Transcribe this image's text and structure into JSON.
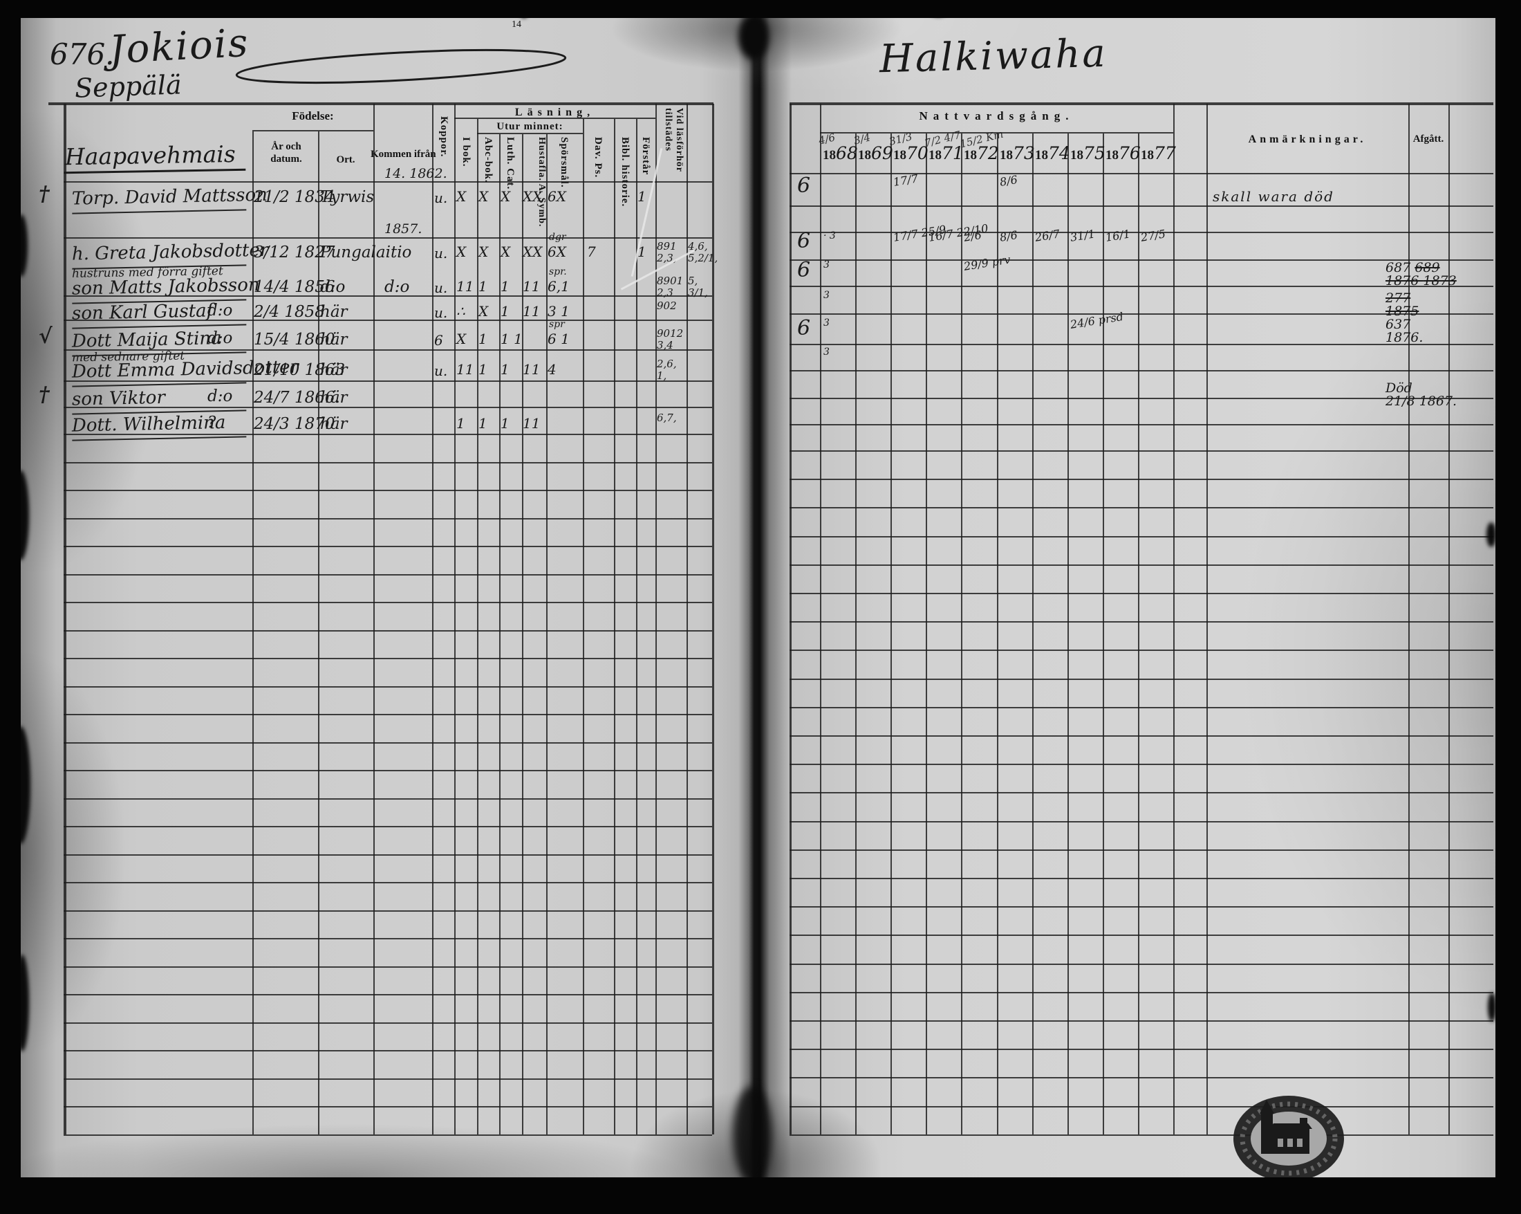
{
  "page": {
    "number": "676.",
    "title_left": "Jokiois",
    "village": "Seppälä",
    "farm": "Haapavehmais",
    "title_right": "Halkiwaha",
    "page_mark": "14",
    "left_table": {
      "fodelse": "Födelse:",
      "ar_och_datum": "År och datum.",
      "ort": "Ort.",
      "kommen_ifran": "Kommen ifrån",
      "koppor": "Koppor.",
      "lasning": "Läsning,",
      "utur_minnet": "Utur minnet:",
      "i_bok": "I bok.",
      "abc_bok": "Abc-bok.",
      "luth_cat": "Luth. Cat.",
      "hustafla": "Hustafla. A. Symb.",
      "sporsmal": "Spörsmål.",
      "dav_ps": "Dav. Ps.",
      "bibl_historie": "Bibl. historie.",
      "forstar": "Förstår",
      "vid_lasforhor": "Vid läsförhör tillstädes"
    },
    "right_table": {
      "nattvardsgang": "Nattvardsgång.",
      "years": [
        "1868",
        "1869",
        "1870",
        "1871",
        "1872",
        "1873",
        "1874",
        "1875",
        "1876",
        "1877"
      ],
      "year_marks": {
        "1868": "4/6",
        "1869": "3/4",
        "1870": "31/3",
        "1871": "7/2 4/7",
        "1872": "15/2 Km"
      },
      "anmarkningar": "Anmärkningar.",
      "afgatt": "Afgått."
    }
  },
  "records": [
    {
      "margin": "†",
      "name": "Torp. David Mattsson",
      "birth": "21/2 1834",
      "ort": "Tyrwis",
      "kommen_above": "14. 1862.",
      "koppor": "u.",
      "reading": {
        "i_bok": "X",
        "abc_bok": "X",
        "luth_cat": "X",
        "hustafla": "XX",
        "sporsmal": "6X",
        "forstar": "1"
      },
      "seal": "6",
      "communion": {
        "1870": "17/7",
        "1873": "8/6"
      },
      "anmarkning": "skall wara död"
    },
    {
      "name": "h. Greta Jakobsdotter",
      "birth": "3/12 1827",
      "ort": "Pungalaitio",
      "kommen_above": "1857.",
      "koppor": "u.",
      "reading": {
        "i_bok": "X",
        "abc_bok": "X",
        "luth_cat": "X",
        "hustafla": "XX",
        "sporsmal": "6X",
        "sporsmal_above": "dgr",
        "dav_ps": "7",
        "forstar": "1"
      },
      "tillstades": [
        "891",
        "2,3,"
      ],
      "tillstades_extra": [
        "4,6,",
        "5,2/1,"
      ],
      "seal": "6",
      "seal_small": "· 3",
      "communion": {
        "1870": "17/7 25/9",
        "1871": "16/7 22/10",
        "1872": "2/6",
        "1873": "8/6",
        "1874": "26/7",
        "1875": "31/1",
        "1876": "16/1",
        "1877": "27/5"
      }
    },
    {
      "annotation": "hustruns med förra giftet",
      "name": "son Matts Jakobsson",
      "birth": "14/4 1856",
      "ort": "d:o",
      "kommen": "d:o",
      "koppor": "u.",
      "reading": {
        "i_bok": "11",
        "abc_bok": "1",
        "luth_cat": "1",
        "hustafla": "11",
        "sporsmal": "6,1",
        "sporsmal_above": "spr."
      },
      "tillstades": [
        "8901",
        "2,3"
      ],
      "tillstades_extra": [
        "5,",
        "3/1,"
      ],
      "seal": "6",
      "seal_small": "3",
      "communion": {
        "1872": "29/9 prv"
      },
      "afgatt": [
        [
          {
            "t": "687"
          },
          {
            "t": "689",
            "s": true
          }
        ],
        [
          {
            "t": "1876",
            "s": true
          },
          {
            "t": "1873",
            "s": true
          }
        ]
      ]
    },
    {
      "name": "son Karl Gustaf",
      "name_right": "d:o",
      "birth": "2/4 1858",
      "ort": "här",
      "koppor": "u.",
      "reading": {
        "i_bok": "∴",
        "abc_bok": "X",
        "luth_cat": "1",
        "hustafla": "11",
        "sporsmal": "3 1"
      },
      "tillstades": [
        "902"
      ],
      "seal_small": "3",
      "afgatt": [
        [
          {
            "t": "277",
            "s": true
          }
        ],
        [
          {
            "t": "1875",
            "s": true
          }
        ],
        [
          {
            "t": "637"
          }
        ],
        [
          {
            "t": "1876."
          }
        ]
      ]
    },
    {
      "margin": "√",
      "name": "Dott Maija Stina",
      "name_right": "d:o",
      "birth": "15/4 1860",
      "ort": "här",
      "koppor": "6",
      "reading": {
        "i_bok": "X",
        "abc_bok": "1",
        "luth_cat": "1 1",
        "sporsmal": "6 1",
        "sporsmal_above": "spr"
      },
      "tillstades": [
        "9012",
        "3,4"
      ],
      "seal": "6",
      "seal_small": "3",
      "communion": {
        "1875": "24/6 prsd"
      }
    },
    {
      "annotation": "med sednare giftet",
      "name": "Dott Emma Davidsdotter",
      "birth": "21/10 1863",
      "ort": "här",
      "koppor": "u.",
      "reading": {
        "i_bok": "11",
        "abc_bok": "1",
        "luth_cat": "1",
        "hustafla": "11",
        "sporsmal": "4"
      },
      "tillstades": [
        "2,6,",
        "1,"
      ],
      "seal_small": "3"
    },
    {
      "margin": "†",
      "name": "son Viktor",
      "name_right": "d:o",
      "birth": "24/7 1866.",
      "ort": "här",
      "afgatt": [
        [
          {
            "t": "Död"
          }
        ],
        [
          {
            "t": "21/8 1867."
          }
        ]
      ]
    },
    {
      "name": "Dott. Wilhelmina",
      "name_right": "?",
      "birth": "24/3 1870",
      "ort": "här",
      "reading": {
        "i_bok": "1",
        "abc_bok": "1",
        "luth_cat": "1",
        "hustafla": "11"
      },
      "tillstades": [
        "6,7,"
      ]
    }
  ]
}
